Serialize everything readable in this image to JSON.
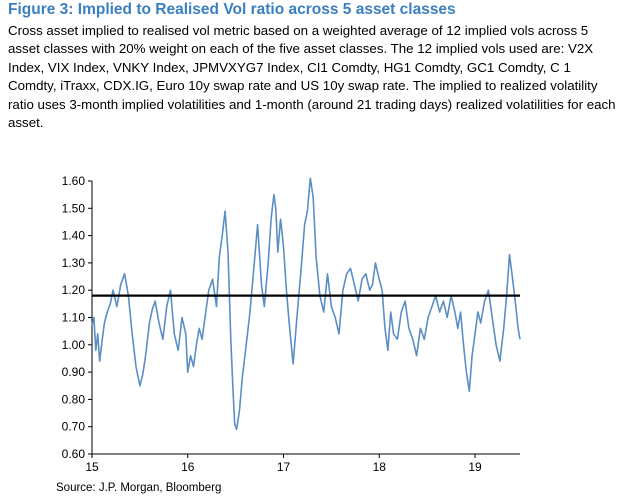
{
  "figure": {
    "title": "Figure 3: Implied to Realised Vol ratio across 5 asset classes",
    "description": "Cross asset implied to realised vol metric based on a weighted average of 12 implied vols across 5 asset classes with 20% weight on each of the five asset classes. The 12 implied vols used are: V2X Index, VIX Index, VNKY Index, JPMVXYG7 Index, CI1 Comdty, HG1 Comdty, GC1 Comdty, C 1 Comdty, iTraxx, CDX.IG, Euro 10y swap rate and US 10y swap rate. The implied to realized volatility ratio uses  3-month implied volatilities and 1-month (around 21 trading days)  realized volatilities for each asset.",
    "source": "Source: J.P. Morgan, Bloomberg"
  },
  "colors": {
    "title": "#3a7fc1",
    "series": "#5b8ec4",
    "reference_line": "#000000"
  },
  "chart_data": {
    "type": "line",
    "title": "",
    "xlabel": "",
    "ylabel": "",
    "xlim": [
      2015,
      2019.47
    ],
    "ylim": [
      0.6,
      1.6
    ],
    "x_ticks": [
      2015,
      2016,
      2017,
      2018,
      2019
    ],
    "x_tick_labels": [
      "15",
      "16",
      "17",
      "18",
      "19"
    ],
    "y_ticks": [
      0.6,
      0.7,
      0.8,
      0.9,
      1.0,
      1.1,
      1.2,
      1.3,
      1.4,
      1.5,
      1.6
    ],
    "y_tick_labels": [
      "0.60",
      "0.70",
      "0.80",
      "0.90",
      "1.00",
      "1.10",
      "1.20",
      "1.30",
      "1.40",
      "1.50",
      "1.60"
    ],
    "grid": false,
    "reference_line": {
      "y": 1.18
    },
    "series": [
      {
        "x": [
          2015.0,
          2015.02,
          2015.04,
          2015.06,
          2015.08,
          2015.1,
          2015.13,
          2015.16,
          2015.19,
          2015.22,
          2015.26,
          2015.3,
          2015.34,
          2015.38,
          2015.42,
          2015.46,
          2015.5,
          2015.53,
          2015.56,
          2015.6,
          2015.63,
          2015.66,
          2015.7,
          2015.74,
          2015.78,
          2015.82,
          2015.86,
          2015.9,
          2015.94,
          2015.98,
          2016.0,
          2016.03,
          2016.06,
          2016.09,
          2016.12,
          2016.15,
          2016.18,
          2016.22,
          2016.26,
          2016.3,
          2016.33,
          2016.36,
          2016.39,
          2016.42,
          2016.45,
          2016.47,
          2016.49,
          2016.51,
          2016.54,
          2016.57,
          2016.61,
          2016.65,
          2016.69,
          2016.73,
          2016.77,
          2016.8,
          2016.84,
          2016.87,
          2016.9,
          2016.92,
          2016.94,
          2016.97,
          2017.0,
          2017.03,
          2017.06,
          2017.1,
          2017.14,
          2017.18,
          2017.22,
          2017.25,
          2017.28,
          2017.31,
          2017.34,
          2017.38,
          2017.42,
          2017.46,
          2017.5,
          2017.54,
          2017.58,
          2017.62,
          2017.66,
          2017.7,
          2017.74,
          2017.78,
          2017.82,
          2017.86,
          2017.9,
          2017.93,
          2017.96,
          2018.0,
          2018.03,
          2018.06,
          2018.09,
          2018.12,
          2018.15,
          2018.19,
          2018.23,
          2018.27,
          2018.31,
          2018.35,
          2018.39,
          2018.43,
          2018.47,
          2018.51,
          2018.55,
          2018.59,
          2018.63,
          2018.67,
          2018.71,
          2018.75,
          2018.79,
          2018.82,
          2018.85,
          2018.88,
          2018.91,
          2018.94,
          2018.97,
          2019.0,
          2019.03,
          2019.06,
          2019.1,
          2019.14,
          2019.18,
          2019.22,
          2019.26,
          2019.3,
          2019.33,
          2019.36,
          2019.39,
          2019.42,
          2019.45,
          2019.47
        ],
        "y": [
          1.07,
          1.1,
          0.98,
          1.04,
          0.94,
          1.0,
          1.08,
          1.12,
          1.15,
          1.2,
          1.14,
          1.22,
          1.26,
          1.18,
          1.04,
          0.92,
          0.85,
          0.89,
          0.96,
          1.08,
          1.13,
          1.16,
          1.08,
          1.02,
          1.14,
          1.2,
          1.04,
          0.98,
          1.1,
          1.04,
          0.9,
          0.96,
          0.92,
          1.0,
          1.06,
          1.02,
          1.1,
          1.2,
          1.24,
          1.14,
          1.32,
          1.4,
          1.49,
          1.34,
          1.02,
          0.85,
          0.71,
          0.69,
          0.76,
          0.88,
          1.0,
          1.12,
          1.28,
          1.44,
          1.22,
          1.14,
          1.3,
          1.46,
          1.55,
          1.5,
          1.34,
          1.46,
          1.36,
          1.2,
          1.08,
          0.93,
          1.1,
          1.26,
          1.44,
          1.49,
          1.61,
          1.54,
          1.32,
          1.18,
          1.12,
          1.26,
          1.14,
          1.1,
          1.04,
          1.2,
          1.26,
          1.28,
          1.22,
          1.16,
          1.24,
          1.26,
          1.2,
          1.22,
          1.3,
          1.24,
          1.2,
          1.06,
          0.98,
          1.12,
          1.04,
          1.02,
          1.12,
          1.16,
          1.06,
          1.02,
          0.96,
          1.06,
          1.02,
          1.1,
          1.14,
          1.18,
          1.12,
          1.16,
          1.1,
          1.18,
          1.12,
          1.06,
          1.12,
          1.0,
          0.9,
          0.83,
          0.96,
          1.04,
          1.12,
          1.08,
          1.16,
          1.2,
          1.1,
          1.0,
          0.94,
          1.06,
          1.18,
          1.33,
          1.25,
          1.16,
          1.06,
          1.02
        ]
      }
    ]
  }
}
